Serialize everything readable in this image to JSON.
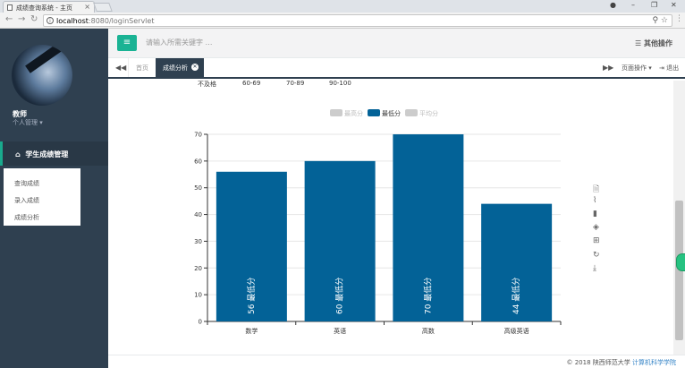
{
  "browser": {
    "tab_title": "成绩查询系统 - 主页",
    "url_host": "localhost",
    "url_path": ":8080/loginServlet"
  },
  "sidebar": {
    "user_name": "教师",
    "user_role": "个人管理 ▾",
    "menu_active": "学生成绩管理",
    "submenu": [
      {
        "label": "查询成绩"
      },
      {
        "label": "录入成绩"
      },
      {
        "label": "成绩分析"
      }
    ]
  },
  "header": {
    "search_placeholder": "请输入所需关键字 …",
    "other_ops": "其他操作"
  },
  "tabs": {
    "home": "首页",
    "current": "成绩分析",
    "page_ops": "页面操作 ▾",
    "logout": "退出"
  },
  "score_ranges": [
    "不及格",
    "60-69",
    "70-89",
    "90-100"
  ],
  "chart_data": {
    "type": "bar",
    "legend": [
      "最高分",
      "最低分",
      "平均分"
    ],
    "legend_active": "最低分",
    "categories": [
      "数学",
      "英语",
      "高数",
      "高级英语"
    ],
    "series": [
      {
        "name": "最低分",
        "values": [
          56,
          60,
          70,
          44
        ],
        "color": "#036297"
      }
    ],
    "ylim": [
      0,
      70
    ],
    "yticks": [
      0,
      10,
      20,
      30,
      40,
      50,
      60,
      70
    ],
    "data_label_suffix": "最低分",
    "grid": true,
    "legend_placement": "top-center"
  },
  "footer": {
    "copyright": "© 2018 陕西师范大学",
    "college": "计算机科学学院"
  }
}
